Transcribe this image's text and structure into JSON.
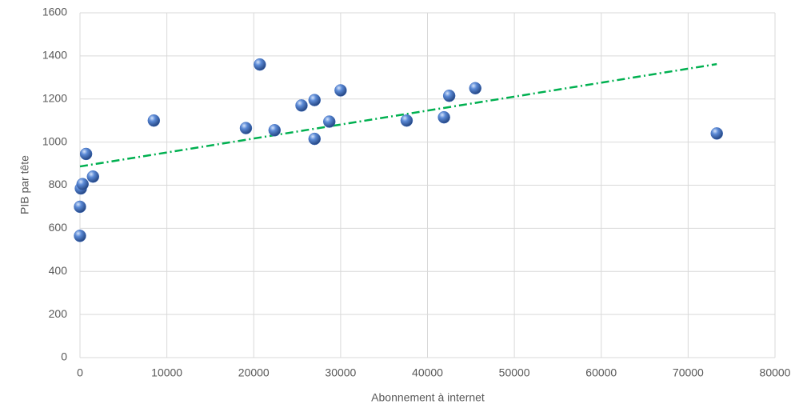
{
  "chart_data": {
    "type": "scatter",
    "xlabel": "Abonnement à internet",
    "ylabel": "PIB par tête",
    "x": [
      0,
      0,
      100,
      300,
      700,
      1500,
      8500,
      19100,
      20700,
      22400,
      25500,
      27000,
      27000,
      28700,
      30000,
      37600,
      41900,
      42500,
      45500,
      73300
    ],
    "y": [
      565,
      700,
      785,
      805,
      945,
      840,
      1100,
      1065,
      1360,
      1055,
      1170,
      1015,
      1195,
      1095,
      1240,
      1100,
      1115,
      1215,
      1250,
      1040
    ],
    "color": "#4472c4",
    "trendline": {
      "x": [
        0,
        73300
      ],
      "y": [
        887,
        1362
      ],
      "color": "#00b050"
    },
    "xlim": [
      0,
      80000
    ],
    "xticks": [
      0,
      10000,
      20000,
      30000,
      40000,
      50000,
      60000,
      70000,
      80000
    ],
    "ylim": [
      0,
      1600
    ],
    "yticks": [
      0,
      200,
      400,
      600,
      800,
      1000,
      1200,
      1400,
      1600
    ],
    "grid": true
  }
}
